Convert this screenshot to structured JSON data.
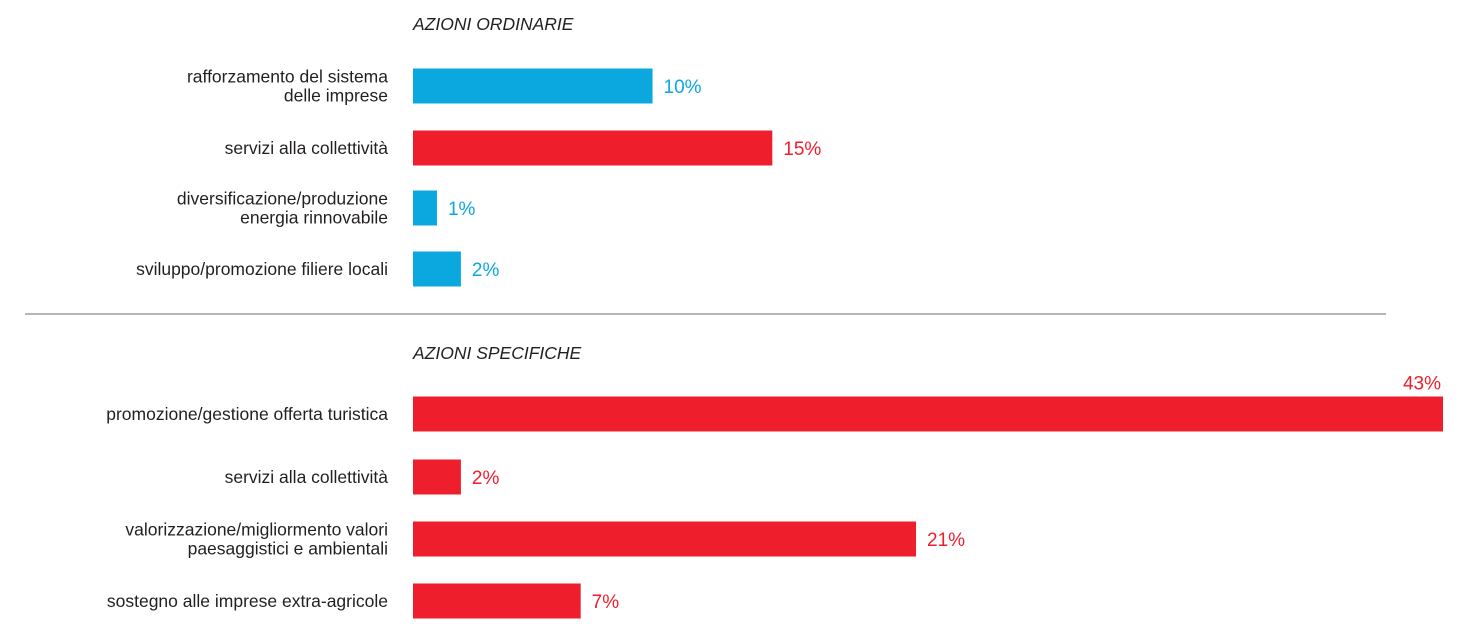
{
  "colors": {
    "blue": "#0aa8df",
    "red": "#ee1e2d",
    "text": "#231f20",
    "divider": "#6d6e71"
  },
  "chart_data": [
    {
      "type": "bar",
      "orientation": "horizontal",
      "title": "AZIONI ORDINARIE",
      "categories": [
        "rafforzamento del sistema\ndelle imprese",
        "servizi alla collettività",
        "diversificazione/produzione\nenergia rinnovabile",
        "sviluppo/promozione filiere locali"
      ],
      "values": [
        10,
        15,
        1,
        2
      ],
      "value_labels": [
        "10%",
        "15%",
        "1%",
        "2%"
      ],
      "bar_colors": [
        "blue",
        "red",
        "blue",
        "blue"
      ],
      "unit": "%",
      "xlim": [
        0,
        43
      ]
    },
    {
      "type": "bar",
      "orientation": "horizontal",
      "title": "AZIONI SPECIFICHE",
      "categories": [
        "promozione/gestione offerta turistica",
        "servizi alla collettività",
        "valorizzazione/migliormento valori\npaesaggistici e ambientali",
        "sostegno alle imprese extra-agricole"
      ],
      "values": [
        43,
        2,
        21,
        7
      ],
      "value_labels": [
        "43%",
        "2%",
        "21%",
        "7%"
      ],
      "bar_colors": [
        "red",
        "red",
        "red",
        "red"
      ],
      "unit": "%",
      "xlim": [
        0,
        43
      ]
    }
  ]
}
